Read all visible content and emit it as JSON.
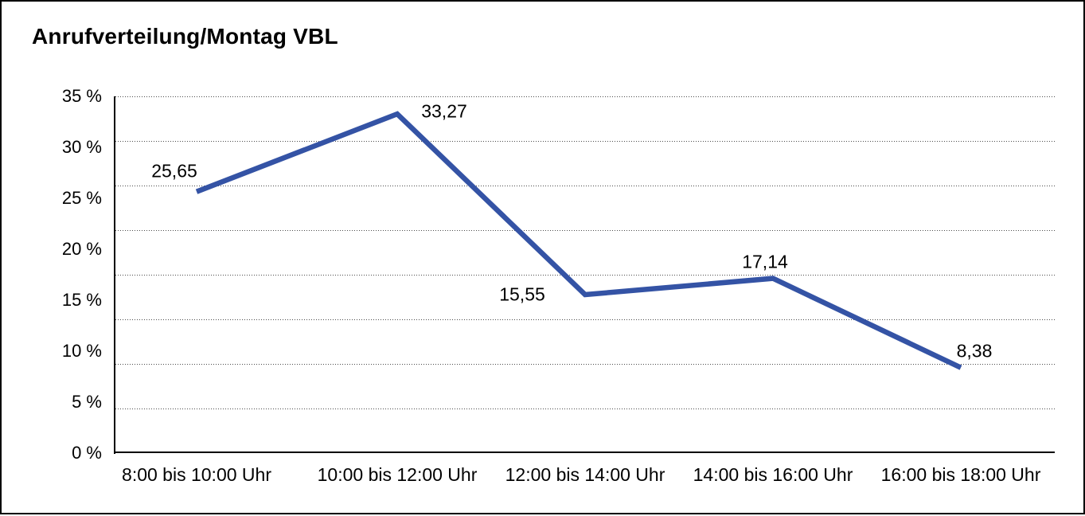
{
  "window": {
    "background_color": "#ffffff",
    "frame_border_color": "#000000"
  },
  "chart_data": {
    "type": "line",
    "title": "Anrufverteilung/Montag VBL",
    "categories": [
      "8:00 bis 10:00 Uhr",
      "10:00 bis 12:00 Uhr",
      "12:00 bis 14:00 Uhr",
      "14:00 bis 16:00 Uhr",
      "16:00 bis 18:00 Uhr"
    ],
    "values": [
      25.65,
      33.27,
      15.55,
      17.14,
      8.38
    ],
    "value_labels": [
      "25,65",
      "33,27",
      "15,55",
      "17,14",
      "8,38"
    ],
    "y_ticks": [
      "35 %",
      "30 %",
      "25 %",
      "20 %",
      "15 %",
      "10 %",
      "5 %",
      "0 %"
    ],
    "ylim": [
      0,
      35
    ],
    "xlabel": "",
    "ylabel": "",
    "grid": "horizontal-dotted",
    "gridline_intervals": 8,
    "legend": "none",
    "line_color": "#3453a5",
    "line_width": 6.5,
    "gridline_color": "#4a4a4a",
    "axis_color": "#000000",
    "text_color": "#000000"
  }
}
